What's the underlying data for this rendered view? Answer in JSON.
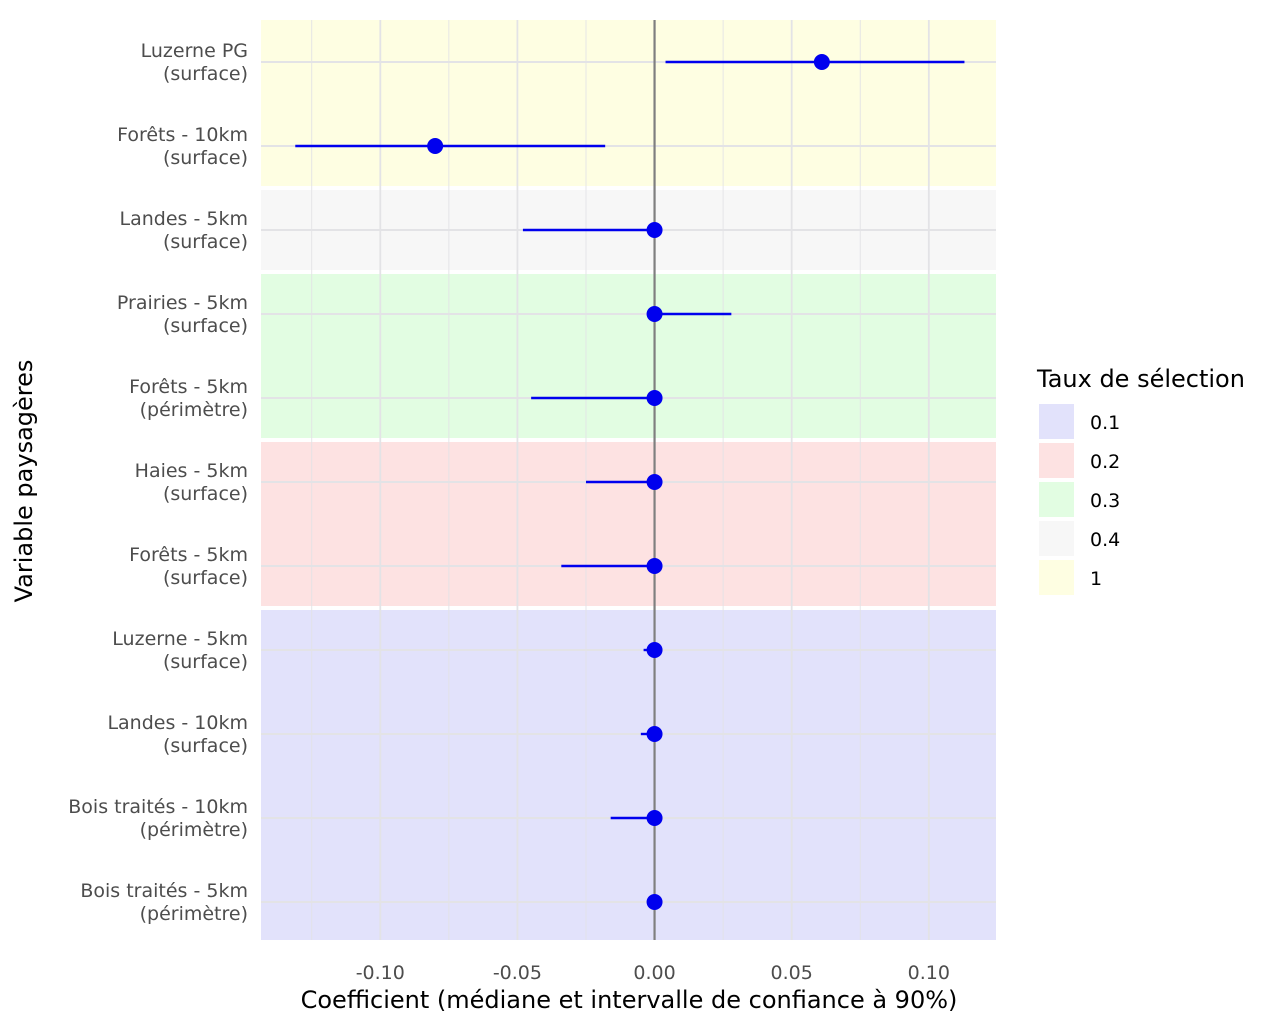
{
  "chart_data": {
    "type": "forest",
    "title": "",
    "xlabel": "Coefficient (médiane et intervalle de confiance à 90%)",
    "ylabel": "Variable paysagères",
    "xlim": [
      -0.1435,
      0.1245
    ],
    "x_ticks": [
      -0.1,
      -0.05,
      0.0,
      0.05,
      0.1
    ],
    "x_tick_labels": [
      "-0.10",
      "-0.05",
      "0.00",
      "0.05",
      "0.10"
    ],
    "reference_line": 0,
    "grid": true,
    "point_color": "#0000ee",
    "legend": {
      "title": "Taux de sélection",
      "position": "right",
      "entries": [
        {
          "label": "0.1",
          "color": "#e2e2fb"
        },
        {
          "label": "0.2",
          "color": "#fde2e2"
        },
        {
          "label": "0.3",
          "color": "#e2fde2"
        },
        {
          "label": "0.4",
          "color": "#f7f7f7"
        },
        {
          "label": "1",
          "color": "#fefee2"
        }
      ]
    },
    "rows": [
      {
        "line1": "Luzerne PG",
        "line2": "(surface)",
        "median": 0.061,
        "lower": 0.004,
        "upper": 0.113,
        "selection_rate": "1"
      },
      {
        "line1": "Forêts - 10km",
        "line2": "(surface)",
        "median": -0.08,
        "lower": -0.131,
        "upper": -0.018,
        "selection_rate": "1"
      },
      {
        "line1": "Landes - 5km",
        "line2": "(surface)",
        "median": 0.0,
        "lower": -0.048,
        "upper": 0.0,
        "selection_rate": "0.4"
      },
      {
        "line1": "Prairies - 5km",
        "line2": "(surface)",
        "median": 0.0,
        "lower": 0.0,
        "upper": 0.028,
        "selection_rate": "0.3"
      },
      {
        "line1": "Forêts - 5km",
        "line2": "(périmètre)",
        "median": 0.0,
        "lower": -0.045,
        "upper": 0.0,
        "selection_rate": "0.3"
      },
      {
        "line1": "Haies - 5km",
        "line2": "(surface)",
        "median": 0.0,
        "lower": -0.025,
        "upper": 0.0,
        "selection_rate": "0.2"
      },
      {
        "line1": "Forêts - 5km",
        "line2": "(surface)",
        "median": 0.0,
        "lower": -0.034,
        "upper": 0.0,
        "selection_rate": "0.2"
      },
      {
        "line1": "Luzerne - 5km",
        "line2": "(surface)",
        "median": 0.0,
        "lower": -0.004,
        "upper": 0.0,
        "selection_rate": "0.1"
      },
      {
        "line1": "Landes - 10km",
        "line2": "(surface)",
        "median": 0.0,
        "lower": -0.005,
        "upper": 0.0,
        "selection_rate": "0.1"
      },
      {
        "line1": "Bois traités - 10km",
        "line2": "(périmètre)",
        "median": 0.0,
        "lower": -0.016,
        "upper": 0.0,
        "selection_rate": "0.1"
      },
      {
        "line1": "Bois traités - 5km",
        "line2": "(périmètre)",
        "median": 0.0,
        "lower": 0.0,
        "upper": 0.0,
        "selection_rate": "0.1"
      }
    ]
  }
}
